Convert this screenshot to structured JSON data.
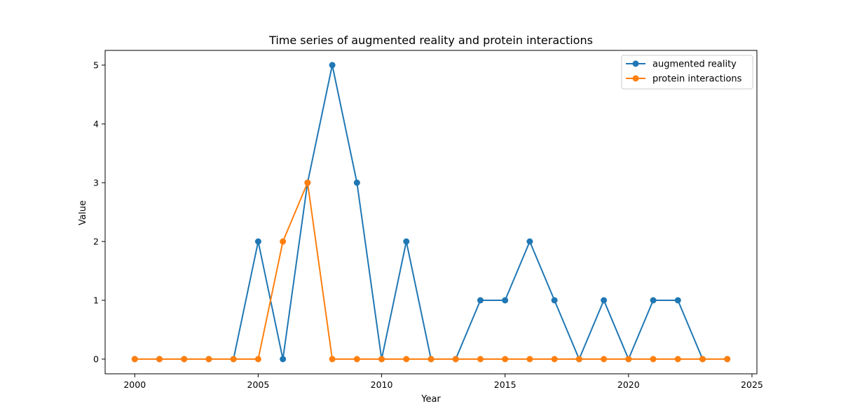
{
  "chart_data": {
    "type": "line",
    "title": "Time series of augmented reality and protein interactions",
    "xlabel": "Year",
    "ylabel": "Value",
    "x": [
      2000,
      2001,
      2002,
      2003,
      2004,
      2005,
      2006,
      2007,
      2008,
      2009,
      2010,
      2011,
      2012,
      2013,
      2014,
      2015,
      2016,
      2017,
      2018,
      2019,
      2020,
      2021,
      2022,
      2023,
      2024
    ],
    "series": [
      {
        "name": "augmented reality",
        "color": "#1f77b4",
        "values": [
          0,
          0,
          0,
          0,
          0,
          2,
          0,
          3,
          5,
          3,
          0,
          2,
          0,
          0,
          1,
          1,
          2,
          1,
          0,
          1,
          0,
          1,
          1,
          0,
          0
        ]
      },
      {
        "name": "protein interactions",
        "color": "#ff7f0e",
        "values": [
          0,
          0,
          0,
          0,
          0,
          0,
          2,
          3,
          0,
          0,
          0,
          0,
          0,
          0,
          0,
          0,
          0,
          0,
          0,
          0,
          0,
          0,
          0,
          0,
          0
        ]
      }
    ],
    "xlim": [
      1998.8,
      2025.2
    ],
    "ylim": [
      -0.25,
      5.25
    ],
    "xticks": [
      2000,
      2005,
      2010,
      2015,
      2020,
      2025
    ],
    "yticks": [
      0,
      1,
      2,
      3,
      4,
      5
    ],
    "grid": false,
    "legend_position": "top-right"
  }
}
